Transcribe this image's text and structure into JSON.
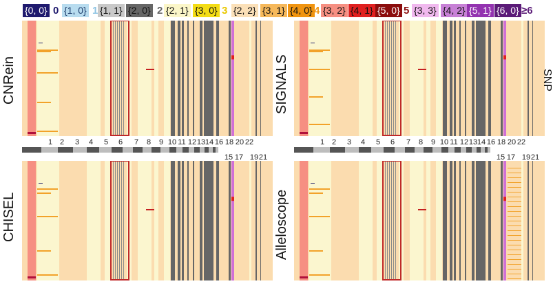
{
  "legend": {
    "items": [
      {
        "label": "{0, 0}",
        "bg": "#1f1a6e",
        "fg": "#ffffff"
      },
      {
        "label": "0",
        "group": true,
        "color": "#1f1a6e"
      },
      {
        "label": "{1, 0}",
        "bg": "#b8dcef",
        "fg": "#1f3f6e"
      },
      {
        "label": "1",
        "group": true,
        "color": "#8fc4e3"
      },
      {
        "label": "{1, 1}",
        "bg": "#c9c9c9",
        "fg": "#111111"
      },
      {
        "label": "{2, 0}",
        "bg": "#666666",
        "fg": "#111111"
      },
      {
        "label": "2",
        "group": true,
        "color": "#666666"
      },
      {
        "label": "{2, 1}",
        "bg": "#fbf6c8",
        "fg": "#111111"
      },
      {
        "label": "{3, 0}",
        "bg": "#f3dc14",
        "fg": "#111111"
      },
      {
        "label": "3",
        "group": true,
        "color": "#e9c800"
      },
      {
        "label": "{2, 2}",
        "bg": "#fbe0b8",
        "fg": "#111111"
      },
      {
        "label": "{3, 1}",
        "bg": "#f6b85a",
        "fg": "#111111"
      },
      {
        "label": "{4, 0}",
        "bg": "#f09410",
        "fg": "#111111"
      },
      {
        "label": "4",
        "group": true,
        "color": "#f09410"
      },
      {
        "label": "{3, 2}",
        "bg": "#f68f82",
        "fg": "#111111"
      },
      {
        "label": "{4, 1}",
        "bg": "#e02020",
        "fg": "#111111"
      },
      {
        "label": "{5, 0}",
        "bg": "#8b0d0d",
        "fg": "#ffffff"
      },
      {
        "label": "5",
        "group": true,
        "color": "#8b0d0d"
      },
      {
        "label": "{3, 3}",
        "bg": "#f0b8ee",
        "fg": "#111111"
      },
      {
        "label": "{4, 2}",
        "bg": "#c780d6",
        "fg": "#111111"
      },
      {
        "label": "{5, 1}",
        "bg": "#9333b0",
        "fg": "#ffffff"
      },
      {
        "label": "{6, 0}",
        "bg": "#5b1b78",
        "fg": "#ffffff"
      },
      {
        "label": "≥6",
        "group": true,
        "color": "#5b1b78"
      }
    ]
  },
  "panels": [
    {
      "title": "CNRein"
    },
    {
      "title": "SIGNALS"
    },
    {
      "title": "CHISEL"
    },
    {
      "title": "Alleloscope"
    }
  ],
  "chromosome_axis": {
    "top_row": [
      "1",
      "2",
      "3",
      "4",
      "5",
      "6",
      "7",
      "8",
      "9",
      "10",
      "11",
      "12",
      "13",
      "14",
      "16",
      "18",
      "20",
      "22"
    ],
    "bottom_row": [
      "15",
      "17",
      "19",
      "21"
    ]
  },
  "right_edge_fragment": "SNP",
  "colors": {
    "base_peach": "#fbdcaf",
    "pale_yellow": "#fbf6cf",
    "salmon": "#f68f82",
    "dark_grey": "#666666",
    "orange": "#f2a22a",
    "magenta": "#d070d6",
    "highlight_box": "#c02828"
  }
}
